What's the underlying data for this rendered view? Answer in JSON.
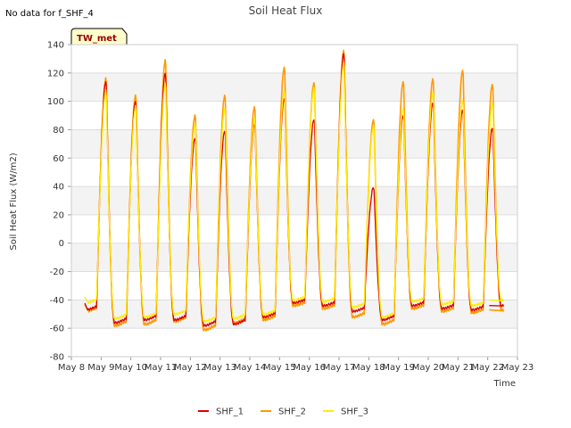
{
  "note": "No data for f_SHF_4",
  "badge": "TW_met",
  "chart_data": {
    "type": "line",
    "title": "Soil Heat Flux",
    "xlabel": "Time",
    "ylabel": "Soil Heat Flux (W/m2)",
    "ylim": [
      -80,
      140
    ],
    "yticks": [
      -80,
      -60,
      -40,
      -20,
      0,
      20,
      40,
      60,
      80,
      100,
      120,
      140
    ],
    "xlim": [
      "2024-05-08",
      "2024-05-23"
    ],
    "xtick_labels": [
      "May 8",
      "May 9",
      "May 10",
      "May 11",
      "May 12",
      "May 13",
      "May 14",
      "May 15",
      "May 16",
      "May 17",
      "May 18",
      "May 19",
      "May 20",
      "May 21",
      "May 22",
      "May 23"
    ],
    "grid": "horizontal bands",
    "legend_position": "bottom-center",
    "series": [
      {
        "name": "SHF_1",
        "color": "#dd0000",
        "daily_peaks": [
          115,
          101,
          121,
          75,
          80,
          85,
          103,
          88,
          135,
          40,
          91,
          100,
          95,
          82
        ],
        "daily_minima": [
          -47,
          -56,
          -54,
          -54,
          -58,
          -57,
          -52,
          -42,
          -44,
          -48,
          -54,
          -44,
          -46,
          -47,
          -44
        ]
      },
      {
        "name": "SHF_2",
        "color": "#ff9900",
        "daily_peaks": [
          117,
          105,
          130,
          91,
          105,
          97,
          125,
          114,
          137,
          88,
          115,
          117,
          123,
          113
        ],
        "daily_minima": [
          -48,
          -58,
          -57,
          -55,
          -61,
          -56,
          -54,
          -44,
          -46,
          -52,
          -57,
          -46,
          -48,
          -49,
          -47
        ]
      },
      {
        "name": "SHF_3",
        "color": "#ffee00",
        "daily_peaks": [
          108,
          97,
          113,
          84,
          95,
          88,
          108,
          110,
          128,
          83,
          95,
          107,
          101,
          99
        ],
        "daily_minima": [
          -42,
          -53,
          -52,
          -50,
          -55,
          -53,
          -50,
          -40,
          -41,
          -45,
          -52,
          -41,
          -43,
          -44,
          -40
        ]
      }
    ]
  }
}
